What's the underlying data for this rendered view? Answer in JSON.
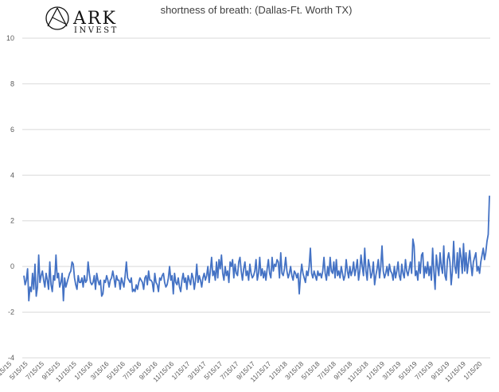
{
  "logo": {
    "word": "ARK",
    "subword": "INVEST"
  },
  "chart_data": {
    "type": "line",
    "title": "shortness of breath: (Dallas-Ft. Worth TX)",
    "xlabel": "",
    "ylabel": "",
    "ylim": [
      -4,
      10
    ],
    "yticks": [
      -4,
      -2,
      0,
      2,
      4,
      6,
      8,
      10
    ],
    "grid": true,
    "legend": "none",
    "line_color": "#4472C4",
    "x_tick_labels": [
      "3/15/15",
      "5/15/15",
      "7/15/15",
      "9/15/15",
      "11/15/15",
      "1/15/16",
      "3/15/16",
      "5/15/16",
      "7/15/16",
      "9/15/16",
      "11/15/16",
      "1/15/17",
      "3/15/17",
      "5/15/17",
      "7/15/17",
      "9/15/17",
      "11/15/17",
      "1/15/18",
      "3/15/18",
      "5/15/18",
      "7/15/18",
      "9/15/18",
      "11/15/18",
      "1/15/19",
      "3/15/19",
      "5/15/19",
      "7/15/19",
      "9/15/19",
      "11/15/19",
      "1/15/20"
    ],
    "series": [
      {
        "values": [
          -0.4,
          -0.8,
          -0.6,
          -0.1,
          -1.5,
          -0.9,
          -1.1,
          -0.3,
          -1.0,
          0.1,
          -1.3,
          -0.9,
          0.5,
          -0.7,
          -0.4,
          -0.2,
          -0.6,
          -0.9,
          -0.3,
          -0.6,
          -1.0,
          0.2,
          -0.8,
          -1.1,
          -0.4,
          -0.6,
          0.5,
          -0.5,
          -0.3,
          -0.9,
          -0.7,
          -0.3,
          -1.5,
          -0.5,
          -0.9,
          -0.7,
          -0.5,
          -0.3,
          -0.2,
          0.2,
          0.1,
          -0.5,
          -0.8,
          -1.0,
          -0.4,
          -0.7,
          -0.7,
          -0.5,
          -0.9,
          -0.4,
          -0.7,
          -0.6,
          0.2,
          -0.3,
          -0.7,
          -0.8,
          -0.7,
          -0.4,
          -1.0,
          -0.3,
          -0.6,
          -0.8,
          -0.6,
          -1.3,
          -1.2,
          -0.6,
          -0.7,
          -0.4,
          -0.6,
          -0.9,
          -0.6,
          -0.5,
          -0.2,
          -0.5,
          -0.9,
          -0.4,
          -0.6,
          -0.6,
          -1.0,
          -0.5,
          -0.7,
          -0.9,
          -0.4,
          0.2,
          -0.5,
          -0.6,
          -0.7,
          -0.5,
          -1.1,
          -1.0,
          -1.1,
          -0.8,
          -1.0,
          -0.7,
          -0.5,
          -0.6,
          -0.7,
          -1.0,
          -0.5,
          -0.4,
          -0.8,
          -0.2,
          -0.6,
          -0.6,
          -0.7,
          -1.1,
          -0.3,
          -0.7,
          -0.8,
          -1.1,
          -0.5,
          -0.6,
          -0.4,
          -0.3,
          -0.7,
          -0.9,
          -0.8,
          -0.5,
          0.0,
          -0.6,
          -0.4,
          -1.2,
          -0.3,
          -0.7,
          -0.8,
          -0.5,
          -0.9,
          -1.1,
          -0.6,
          -0.3,
          -0.7,
          -0.5,
          -1.0,
          -0.4,
          -0.6,
          -0.8,
          -0.3,
          -0.5,
          -1.0,
          -0.6,
          0.1,
          -0.7,
          -0.4,
          -0.6,
          -0.9,
          -0.5,
          -0.3,
          -0.6,
          -0.4,
          0.0,
          -0.7,
          -0.2,
          0.4,
          -0.4,
          -0.2,
          -0.6,
          0.2,
          -0.5,
          0.3,
          -0.1,
          0.5,
          -0.3,
          -0.6,
          0.0,
          -0.4,
          -0.2,
          -0.7,
          0.2,
          0.0,
          0.3,
          -0.5,
          0.1,
          -0.3,
          -0.4,
          0.2,
          0.4,
          -0.2,
          -0.6,
          -0.1,
          0.2,
          -0.4,
          -0.2,
          -0.6,
          0.1,
          -0.3,
          -0.5,
          -0.4,
          -0.2,
          0.3,
          -0.6,
          -0.3,
          0.4,
          -0.4,
          -0.1,
          -0.5,
          -0.2,
          -0.6,
          -0.1,
          0.3,
          -0.3,
          -0.5,
          0.4,
          -0.2,
          0.1,
          0.0,
          0.3,
          0.2,
          -0.5,
          0.6,
          -0.3,
          -0.4,
          -0.1,
          0.4,
          -0.2,
          -0.5,
          -0.3,
          0.0,
          -0.4,
          -0.6,
          -0.2,
          -0.3,
          -0.5,
          -0.3,
          -1.2,
          -0.4,
          0.1,
          -0.3,
          -0.5,
          -0.7,
          -0.2,
          -0.4,
          0.0,
          0.8,
          -0.3,
          -0.5,
          -0.2,
          -0.4,
          -0.6,
          -0.2,
          -0.4,
          -0.3,
          -0.5,
          -0.2,
          0.4,
          -0.3,
          -0.6,
          0.0,
          -0.4,
          0.4,
          -0.2,
          -0.3,
          0.2,
          -0.5,
          0.3,
          -0.4,
          -0.2,
          -0.5,
          0.0,
          -0.3,
          -0.6,
          -0.4,
          0.3,
          -0.2,
          -0.5,
          0.0,
          -0.4,
          -0.2,
          0.2,
          -0.4,
          -0.1,
          0.3,
          -0.6,
          -0.2,
          0.5,
          0.0,
          -0.4,
          0.8,
          -0.2,
          -0.6,
          0.3,
          0.0,
          -0.5,
          -0.3,
          0.2,
          -0.8,
          -0.4,
          -0.1,
          0.3,
          -0.5,
          0.0,
          0.9,
          -0.2,
          -0.5,
          -0.3,
          0.0,
          -0.4,
          0.1,
          -0.2,
          -0.3,
          -0.6,
          0.0,
          -0.5,
          -0.2,
          0.2,
          -0.4,
          -0.6,
          0.1,
          -0.3,
          -0.5,
          0.3,
          -0.2,
          -0.4,
          -0.1,
          0.2,
          -0.3,
          1.2,
          0.9,
          -0.4,
          -0.2,
          -0.6,
          0.2,
          -0.3,
          0.5,
          0.6,
          -0.5,
          0.0,
          -0.3,
          0.2,
          -0.4,
          0.0,
          -0.6,
          0.8,
          -0.2,
          -1.0,
          0.5,
          0.0,
          -0.4,
          0.6,
          0.0,
          -0.3,
          0.9,
          -0.4,
          -0.6,
          0.3,
          0.6,
          0.2,
          -0.8,
          -0.2,
          1.1,
          0.0,
          -0.3,
          0.6,
          -0.5,
          0.8,
          0.4,
          -0.3,
          1.0,
          -0.2,
          0.6,
          -0.3,
          0.2,
          0.7,
          0.1,
          -0.4,
          0.2,
          0.4,
          0.6,
          -0.2,
          0.0,
          -0.3,
          0.2,
          0.5,
          0.8,
          0.3,
          0.6,
          1.1,
          1.4,
          3.1
        ]
      }
    ]
  }
}
